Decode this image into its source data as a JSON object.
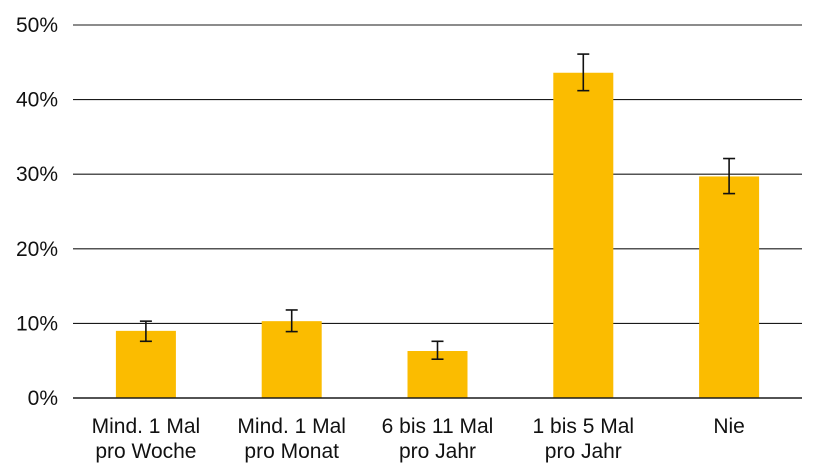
{
  "chart_data": {
    "type": "bar",
    "categories": [
      [
        "Mind. 1 Mal",
        "pro Woche"
      ],
      [
        "Mind. 1 Mal",
        "pro Monat"
      ],
      [
        "6 bis 11 Mal",
        "pro Jahr"
      ],
      [
        "1 bis 5 Mal",
        "pro Jahr"
      ],
      [
        "Nie"
      ]
    ],
    "values": [
      9.0,
      10.3,
      6.3,
      43.6,
      29.7
    ],
    "error_low": [
      7.6,
      8.9,
      5.2,
      41.2,
      27.4
    ],
    "error_high": [
      10.3,
      11.8,
      7.6,
      46.1,
      32.1
    ],
    "ylim": [
      0,
      50
    ],
    "yticks": [
      0,
      10,
      20,
      30,
      40,
      50
    ],
    "ytick_labels": [
      "0%",
      "10%",
      "20%",
      "30%",
      "40%",
      "50%"
    ],
    "grid": true,
    "bar_color": "#FBBC00",
    "title": "",
    "xlabel": "",
    "ylabel": ""
  }
}
